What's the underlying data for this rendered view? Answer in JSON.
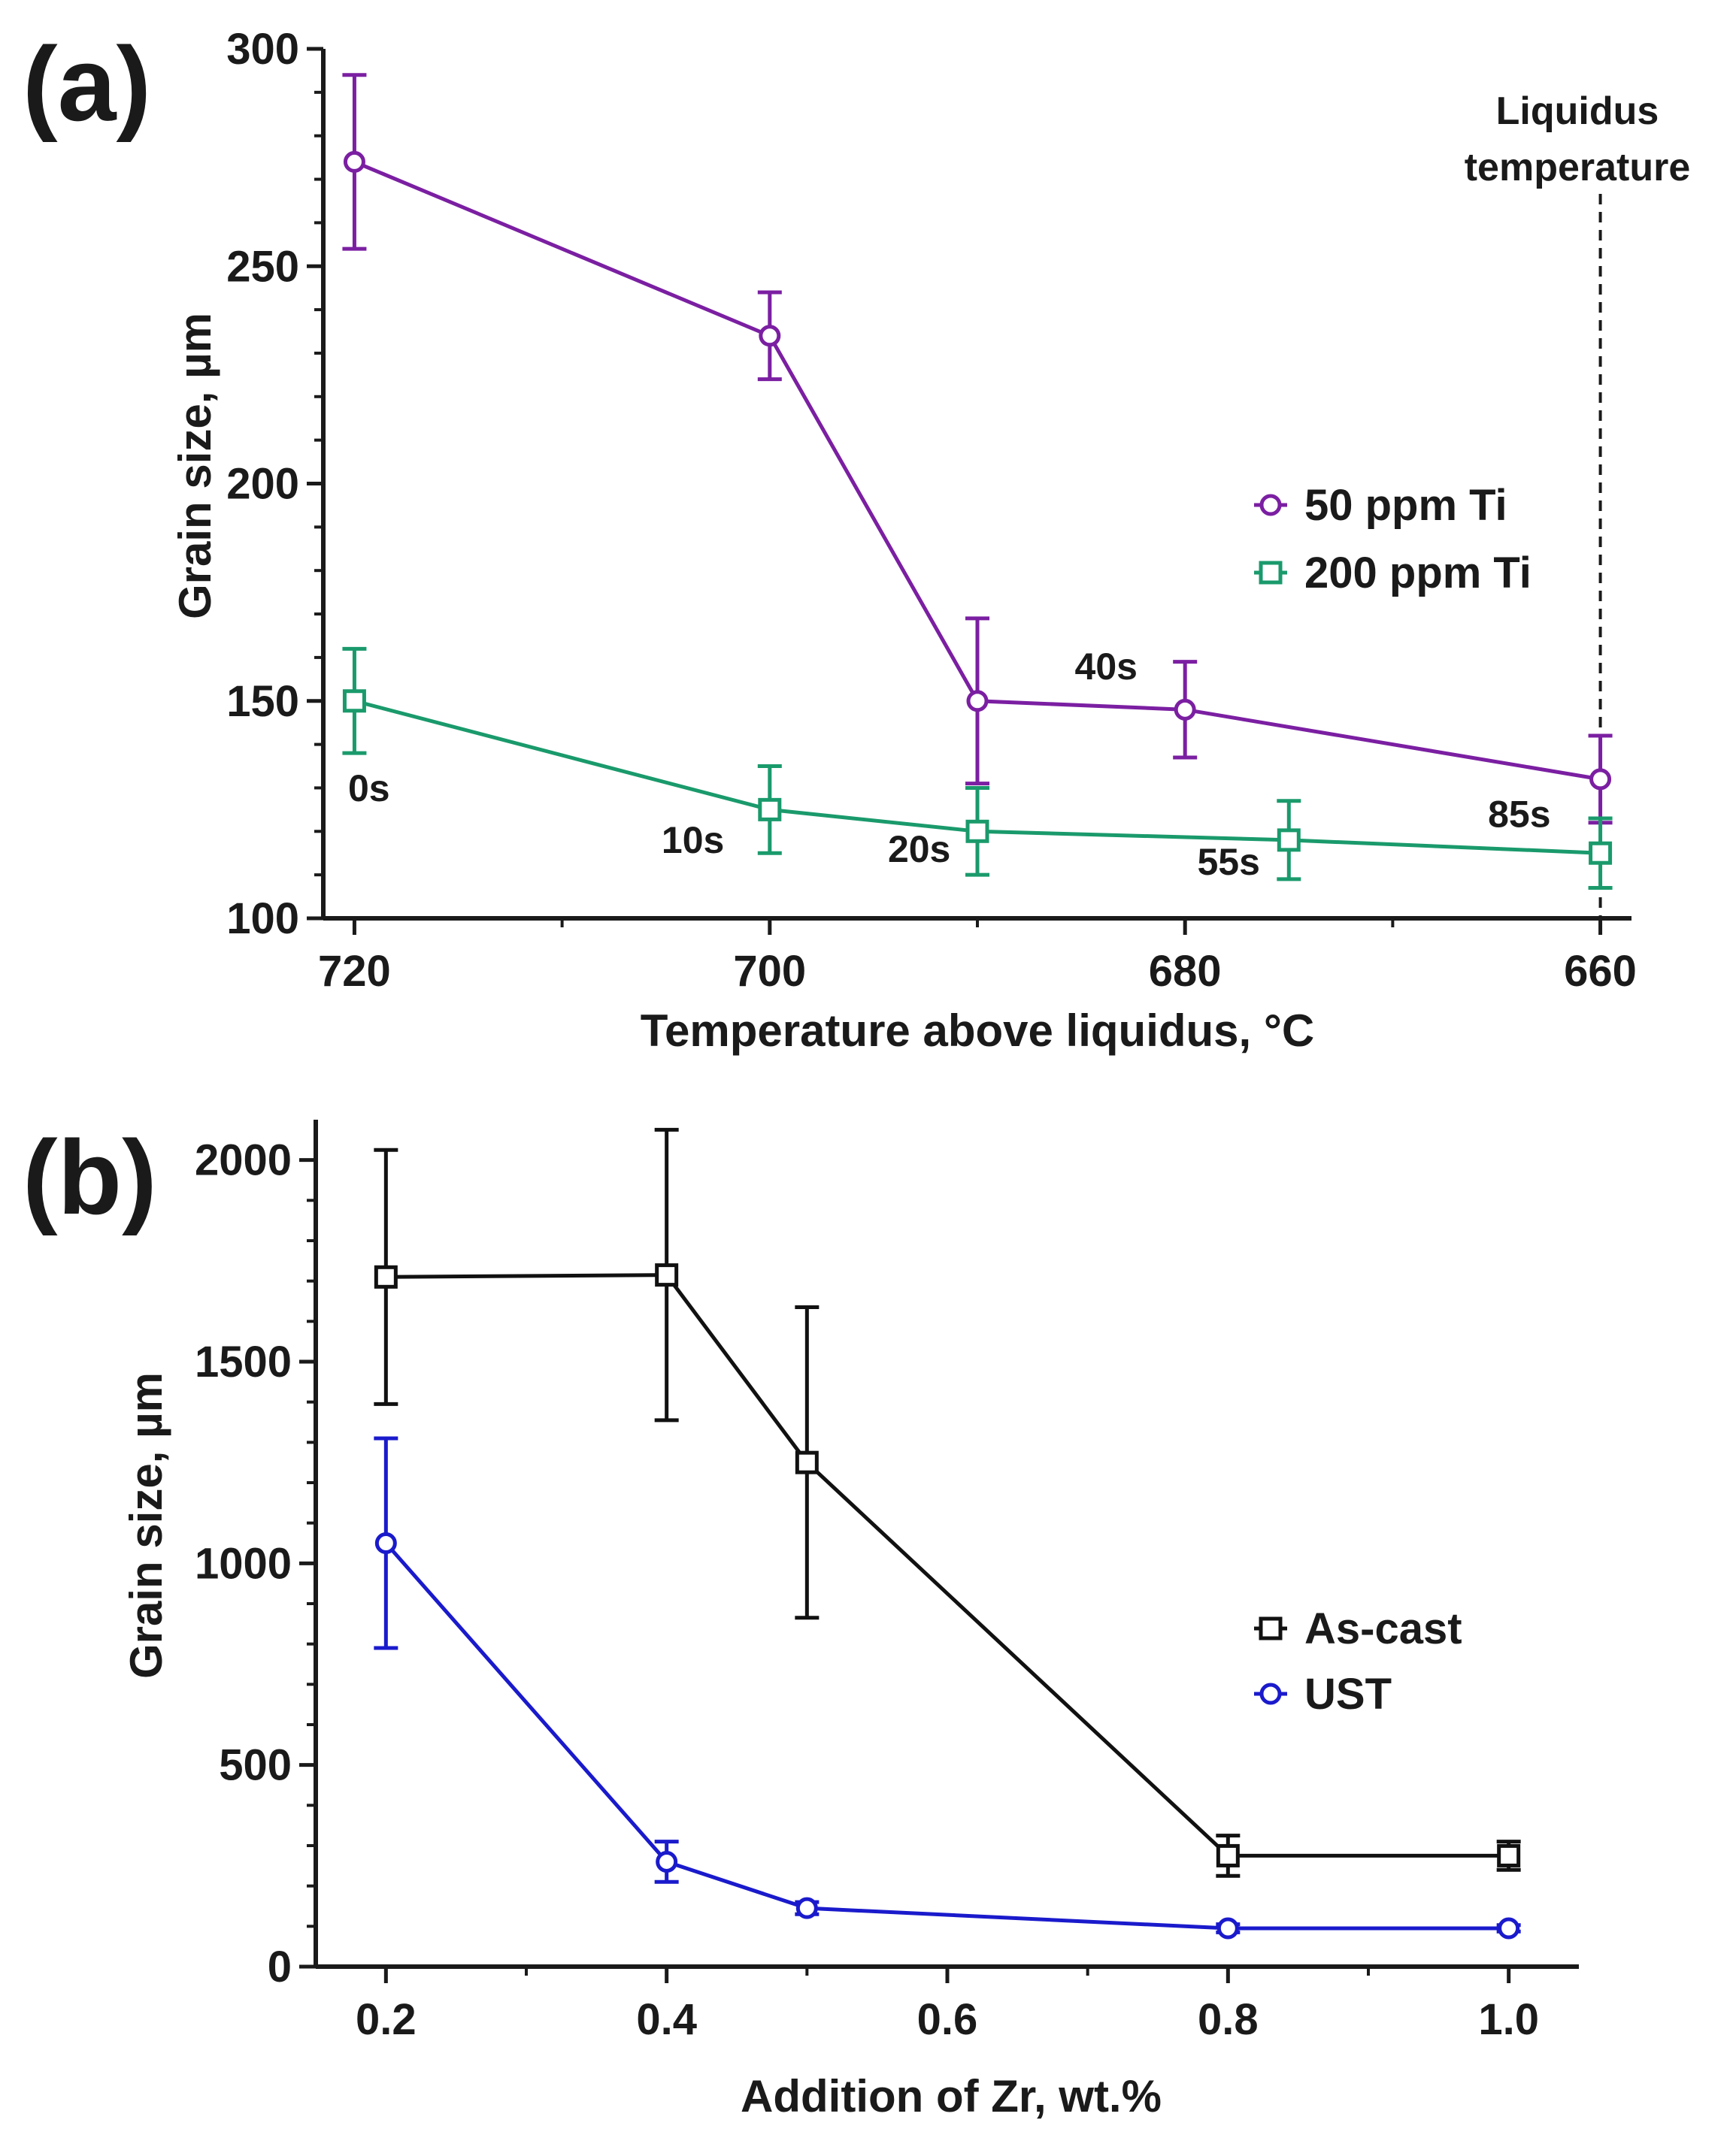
{
  "chart_data": [
    {
      "id": "a",
      "panel_label": "(a)",
      "type": "line",
      "title": "",
      "xlabel": "Temperature above liquidus, °C",
      "ylabel": "Grain size, µm",
      "xlim": [
        721.5,
        658.5
      ],
      "ylim": [
        100,
        300
      ],
      "x_ticks": [
        720,
        700,
        680,
        660
      ],
      "x_minor_ticks": [
        710,
        690,
        670
      ],
      "y_ticks": [
        100,
        150,
        200,
        250,
        300
      ],
      "grid": false,
      "legend": "right-middle",
      "series": [
        {
          "name": "50 ppm Ti",
          "color": "#7b1fa2",
          "marker": "circle",
          "x": [
            720,
            700,
            690,
            680,
            660
          ],
          "y": [
            274,
            234,
            150,
            148,
            132
          ],
          "err": [
            20,
            10,
            19,
            11,
            10
          ]
        },
        {
          "name": "200 ppm Ti",
          "color": "#1a9a6c",
          "marker": "square",
          "x": [
            720,
            700,
            690,
            675,
            660
          ],
          "y": [
            150,
            125,
            120,
            118,
            115
          ],
          "err": [
            12,
            10,
            10,
            9,
            8
          ]
        }
      ],
      "annotations": [
        {
          "text": "0s",
          "x": 719.3,
          "y": 127
        },
        {
          "text": "10s",
          "x": 703.7,
          "y": 115
        },
        {
          "text": "20s",
          "x": 692.8,
          "y": 113
        },
        {
          "text": "40s",
          "x": 683.8,
          "y": 155
        },
        {
          "text": "55s",
          "x": 677.9,
          "y": 110
        },
        {
          "text": "85s",
          "x": 663.9,
          "y": 121
        }
      ],
      "reference_line": {
        "x": 660,
        "label_line1": "Liquidus",
        "label_line2": "temperature"
      }
    },
    {
      "id": "b",
      "panel_label": "(b)",
      "type": "line",
      "title": "",
      "xlabel": "Addition of Zr, wt.%",
      "ylabel": "Grain size, µm",
      "xlim": [
        0.15,
        1.05
      ],
      "ylim": [
        0,
        2100
      ],
      "x_ticks": [
        0.2,
        0.4,
        0.6,
        0.8,
        1.0
      ],
      "x_tick_labels": [
        "0.2",
        "0.4",
        "0.6",
        "0.8",
        "1.0"
      ],
      "x_minor_ticks": [
        0.3,
        0.5,
        0.7,
        0.9
      ],
      "y_ticks": [
        0,
        500,
        1000,
        1500,
        2000
      ],
      "grid": false,
      "legend": "right-bottom",
      "series": [
        {
          "name": "As-cast",
          "color": "#111111",
          "marker": "square",
          "x": [
            0.2,
            0.4,
            0.5,
            0.8,
            1.0
          ],
          "y": [
            1710,
            1715,
            1250,
            275,
            275
          ],
          "err": [
            315,
            360,
            385,
            50,
            35
          ]
        },
        {
          "name": "UST",
          "color": "#1a1acc",
          "marker": "circle",
          "x": [
            0.2,
            0.4,
            0.5,
            0.8,
            1.0
          ],
          "y": [
            1050,
            260,
            145,
            95,
            95
          ],
          "err": [
            260,
            50,
            15,
            10,
            8
          ]
        }
      ]
    }
  ]
}
